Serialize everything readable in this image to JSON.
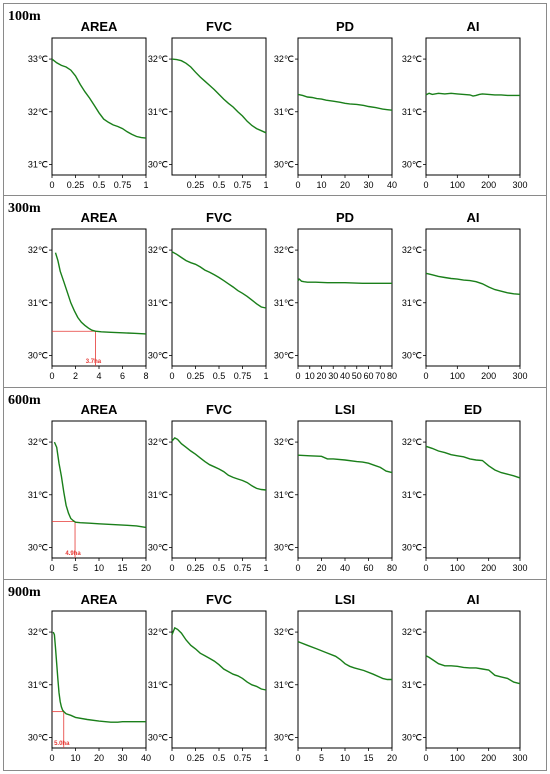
{
  "figure": {
    "line_color": "#1a7f1a",
    "threshold_color": "#e53935"
  },
  "chart_data": [
    {
      "row": "100m",
      "title": "AREA",
      "type": "line",
      "xlim": [
        0,
        1
      ],
      "xticks": [
        0,
        0.25,
        0.5,
        0.75,
        1
      ],
      "xticklabels": [
        "0",
        "0.25",
        "0.5",
        "0.75",
        "1"
      ],
      "ylim": [
        30.8,
        33.4
      ],
      "yticks": [
        31,
        32,
        33
      ],
      "yticklabels": [
        "31℃",
        "32℃",
        "33℃"
      ],
      "x": [
        0,
        0.05,
        0.1,
        0.15,
        0.2,
        0.25,
        0.3,
        0.35,
        0.4,
        0.45,
        0.5,
        0.55,
        0.6,
        0.65,
        0.7,
        0.75,
        0.8,
        0.85,
        0.9,
        0.95,
        1
      ],
      "y": [
        33.0,
        32.93,
        32.88,
        32.85,
        32.79,
        32.68,
        32.52,
        32.38,
        32.26,
        32.12,
        31.98,
        31.86,
        31.8,
        31.75,
        31.72,
        31.68,
        31.62,
        31.57,
        31.53,
        31.51,
        31.5
      ]
    },
    {
      "row": "100m",
      "title": "FVC",
      "type": "line",
      "xlim": [
        0,
        1
      ],
      "xticks": [
        0.25,
        0.5,
        0.75,
        1
      ],
      "xticklabels": [
        "0.25",
        "0.5",
        "0.75",
        "1"
      ],
      "ylim": [
        29.8,
        32.4
      ],
      "yticks": [
        30,
        31,
        32
      ],
      "yticklabels": [
        "30℃",
        "31℃",
        "32℃"
      ],
      "x": [
        0,
        0.05,
        0.1,
        0.15,
        0.2,
        0.25,
        0.3,
        0.35,
        0.4,
        0.45,
        0.5,
        0.55,
        0.6,
        0.65,
        0.7,
        0.75,
        0.8,
        0.85,
        0.9,
        0.95,
        1
      ],
      "y": [
        32.0,
        31.99,
        31.97,
        31.92,
        31.85,
        31.75,
        31.66,
        31.58,
        31.5,
        31.42,
        31.33,
        31.24,
        31.16,
        31.09,
        31.0,
        30.92,
        30.82,
        30.74,
        30.68,
        30.64,
        30.6
      ]
    },
    {
      "row": "100m",
      "title": "PD",
      "type": "line",
      "xlim": [
        0,
        40
      ],
      "xticks": [
        0,
        10,
        20,
        30,
        40
      ],
      "xticklabels": [
        "0",
        "10",
        "20",
        "30",
        "40"
      ],
      "ylim": [
        29.8,
        32.4
      ],
      "yticks": [
        30,
        31,
        32
      ],
      "yticklabels": [
        "30℃",
        "31℃",
        "32℃"
      ],
      "x": [
        0,
        2,
        4,
        6,
        8,
        10,
        12,
        15,
        18,
        20,
        22,
        25,
        28,
        30,
        33,
        36,
        38,
        40
      ],
      "y": [
        31.33,
        31.31,
        31.28,
        31.27,
        31.25,
        31.24,
        31.22,
        31.2,
        31.18,
        31.16,
        31.15,
        31.14,
        31.12,
        31.1,
        31.08,
        31.05,
        31.04,
        31.03
      ]
    },
    {
      "row": "100m",
      "title": "AI",
      "type": "line",
      "xlim": [
        0,
        300
      ],
      "xticks": [
        0,
        100,
        200,
        300
      ],
      "xticklabels": [
        "0",
        "100",
        "200",
        "300"
      ],
      "ylim": [
        29.8,
        32.4
      ],
      "yticks": [
        30,
        31,
        32
      ],
      "yticklabels": [
        "30℃",
        "31℃",
        "32℃"
      ],
      "x": [
        0,
        10,
        20,
        40,
        60,
        80,
        100,
        120,
        140,
        150,
        160,
        170,
        180,
        200,
        220,
        240,
        260,
        280,
        300
      ],
      "y": [
        31.32,
        31.35,
        31.33,
        31.35,
        31.34,
        31.35,
        31.34,
        31.33,
        31.32,
        31.3,
        31.31,
        31.33,
        31.34,
        31.33,
        31.32,
        31.32,
        31.31,
        31.31,
        31.31
      ]
    },
    {
      "row": "300m",
      "title": "AREA",
      "type": "line",
      "xlim": [
        0,
        8
      ],
      "xticks": [
        0,
        2,
        4,
        6,
        8
      ],
      "xticklabels": [
        "0",
        "2",
        "4",
        "6",
        "8"
      ],
      "ylim": [
        29.8,
        32.4
      ],
      "yticks": [
        30,
        31,
        32
      ],
      "yticklabels": [
        "30℃",
        "31℃",
        "32℃"
      ],
      "x": [
        0.3,
        0.5,
        0.7,
        1.0,
        1.3,
        1.6,
        1.9,
        2.2,
        2.5,
        2.8,
        3.1,
        3.4,
        3.7,
        4.2,
        5,
        6,
        7,
        8
      ],
      "y": [
        31.95,
        31.8,
        31.6,
        31.4,
        31.2,
        31.0,
        30.85,
        30.72,
        30.63,
        30.57,
        30.52,
        30.48,
        30.46,
        30.45,
        30.44,
        30.43,
        30.42,
        30.41
      ],
      "threshold": {
        "x": 3.7,
        "y": 30.46,
        "label": "3.7ha"
      }
    },
    {
      "row": "300m",
      "title": "FVC",
      "type": "line",
      "xlim": [
        0,
        1
      ],
      "xticks": [
        0,
        0.25,
        0.5,
        0.75,
        1
      ],
      "xticklabels": [
        "0",
        "0.25",
        "0.5",
        "0.75",
        "1"
      ],
      "ylim": [
        29.8,
        32.4
      ],
      "yticks": [
        30,
        31,
        32
      ],
      "yticklabels": [
        "30℃",
        "31℃",
        "32℃"
      ],
      "x": [
        0,
        0.05,
        0.1,
        0.15,
        0.2,
        0.25,
        0.3,
        0.35,
        0.4,
        0.45,
        0.5,
        0.55,
        0.6,
        0.65,
        0.7,
        0.75,
        0.8,
        0.85,
        0.9,
        0.95,
        1
      ],
      "y": [
        31.97,
        31.92,
        31.86,
        31.8,
        31.76,
        31.73,
        31.68,
        31.62,
        31.58,
        31.53,
        31.48,
        31.42,
        31.36,
        31.3,
        31.23,
        31.18,
        31.12,
        31.05,
        30.98,
        30.92,
        30.9
      ]
    },
    {
      "row": "300m",
      "title": "PD",
      "type": "line",
      "xlim": [
        0,
        80
      ],
      "xticks": [
        0,
        10,
        20,
        30,
        40,
        50,
        60,
        70,
        80
      ],
      "xticklabels": [
        "0",
        "10",
        "20",
        "30",
        "40",
        "50",
        "60",
        "70",
        "80"
      ],
      "ylim": [
        29.8,
        32.4
      ],
      "yticks": [
        30,
        31,
        32
      ],
      "yticklabels": [
        "30℃",
        "31℃",
        "32℃"
      ],
      "x": [
        0,
        1,
        2,
        3,
        5,
        8,
        15,
        25,
        40,
        55,
        70,
        80
      ],
      "y": [
        31.42,
        31.45,
        31.43,
        31.41,
        31.4,
        31.39,
        31.39,
        31.38,
        31.38,
        31.37,
        31.37,
        31.37
      ]
    },
    {
      "row": "300m",
      "title": "AI",
      "type": "line",
      "xlim": [
        0,
        300
      ],
      "xticks": [
        0,
        100,
        200,
        300
      ],
      "xticklabels": [
        "0",
        "100",
        "200",
        "300"
      ],
      "ylim": [
        29.8,
        32.4
      ],
      "yticks": [
        30,
        31,
        32
      ],
      "yticklabels": [
        "30℃",
        "31℃",
        "32℃"
      ],
      "x": [
        0,
        20,
        40,
        60,
        80,
        100,
        120,
        140,
        160,
        180,
        200,
        220,
        240,
        260,
        280,
        300
      ],
      "y": [
        31.56,
        31.53,
        31.5,
        31.48,
        31.46,
        31.45,
        31.43,
        31.42,
        31.4,
        31.36,
        31.3,
        31.25,
        31.22,
        31.19,
        31.17,
        31.16
      ]
    },
    {
      "row": "600m",
      "title": "AREA",
      "type": "line",
      "xlim": [
        0,
        20
      ],
      "xticks": [
        0,
        5,
        10,
        15,
        20
      ],
      "xticklabels": [
        "0",
        "5",
        "10",
        "15",
        "20"
      ],
      "ylim": [
        29.8,
        32.4
      ],
      "yticks": [
        30,
        31,
        32
      ],
      "yticklabels": [
        "30℃",
        "31℃",
        "32℃"
      ],
      "x": [
        0.5,
        1,
        1.5,
        2,
        2.5,
        3,
        3.5,
        4,
        4.5,
        5,
        6,
        8,
        10,
        12,
        14,
        16,
        18,
        20
      ],
      "y": [
        32.0,
        31.9,
        31.6,
        31.35,
        31.05,
        30.8,
        30.65,
        30.55,
        30.51,
        30.48,
        30.47,
        30.46,
        30.45,
        30.44,
        30.43,
        30.42,
        30.41,
        30.38
      ],
      "threshold": {
        "x": 4.9,
        "y": 30.49,
        "label": "4.9ha"
      }
    },
    {
      "row": "600m",
      "title": "FVC",
      "type": "line",
      "xlim": [
        0,
        1
      ],
      "xticks": [
        0,
        0.25,
        0.5,
        0.75,
        1
      ],
      "xticklabels": [
        "0",
        "0.25",
        "0.5",
        "0.75",
        "1"
      ],
      "ylim": [
        29.8,
        32.4
      ],
      "yticks": [
        30,
        31,
        32
      ],
      "yticklabels": [
        "30℃",
        "31℃",
        "32℃"
      ],
      "x": [
        0,
        0.03,
        0.06,
        0.1,
        0.15,
        0.2,
        0.25,
        0.3,
        0.35,
        0.4,
        0.45,
        0.5,
        0.55,
        0.6,
        0.65,
        0.7,
        0.75,
        0.8,
        0.85,
        0.9,
        0.95,
        1
      ],
      "y": [
        32.02,
        32.08,
        32.05,
        31.97,
        31.9,
        31.83,
        31.77,
        31.7,
        31.63,
        31.57,
        31.53,
        31.49,
        31.44,
        31.37,
        31.33,
        31.3,
        31.27,
        31.23,
        31.17,
        31.12,
        31.1,
        31.09
      ]
    },
    {
      "row": "600m",
      "title": "LSI",
      "type": "line",
      "xlim": [
        0,
        80
      ],
      "xticks": [
        0,
        20,
        40,
        60,
        80
      ],
      "xticklabels": [
        "0",
        "20",
        "40",
        "60",
        "80"
      ],
      "ylim": [
        29.8,
        32.4
      ],
      "yticks": [
        30,
        31,
        32
      ],
      "yticklabels": [
        "30℃",
        "31℃",
        "32℃"
      ],
      "x": [
        0,
        10,
        20,
        25,
        30,
        40,
        50,
        55,
        60,
        65,
        70,
        75,
        80
      ],
      "y": [
        31.75,
        31.74,
        31.73,
        31.68,
        31.68,
        31.66,
        31.63,
        31.62,
        31.6,
        31.56,
        31.52,
        31.45,
        31.42
      ]
    },
    {
      "row": "600m",
      "title": "ED",
      "type": "line",
      "xlim": [
        0,
        300
      ],
      "xticks": [
        0,
        100,
        200,
        300
      ],
      "xticklabels": [
        "0",
        "100",
        "200",
        "300"
      ],
      "ylim": [
        29.8,
        32.4
      ],
      "yticks": [
        30,
        31,
        32
      ],
      "yticklabels": [
        "30℃",
        "31℃",
        "32℃"
      ],
      "x": [
        0,
        20,
        40,
        60,
        80,
        100,
        120,
        140,
        160,
        180,
        200,
        220,
        240,
        260,
        280,
        300
      ],
      "y": [
        31.92,
        31.88,
        31.83,
        31.8,
        31.76,
        31.74,
        31.72,
        31.68,
        31.66,
        31.65,
        31.55,
        31.47,
        31.42,
        31.39,
        31.36,
        31.32
      ]
    },
    {
      "row": "900m",
      "title": "AREA",
      "type": "line",
      "xlim": [
        0,
        40
      ],
      "xticks": [
        0,
        10,
        20,
        30,
        40
      ],
      "xticklabels": [
        "0",
        "10",
        "20",
        "30",
        "40"
      ],
      "ylim": [
        29.8,
        32.4
      ],
      "yticks": [
        30,
        31,
        32
      ],
      "yticklabels": [
        "30℃",
        "31℃",
        "32℃"
      ],
      "x": [
        0.5,
        1,
        1.5,
        2,
        2.5,
        3,
        3.5,
        4,
        4.5,
        5,
        6,
        8,
        10,
        15,
        20,
        25,
        28,
        30,
        35,
        40
      ],
      "y": [
        32.0,
        31.95,
        31.7,
        31.4,
        31.1,
        30.85,
        30.68,
        30.58,
        30.52,
        30.49,
        30.45,
        30.42,
        30.38,
        30.34,
        30.31,
        30.29,
        30.29,
        30.3,
        30.3,
        30.3
      ],
      "threshold": {
        "x": 5.0,
        "y": 30.49,
        "label": "5.0ha"
      }
    },
    {
      "row": "900m",
      "title": "FVC",
      "type": "line",
      "xlim": [
        0,
        1
      ],
      "xticks": [
        0,
        0.25,
        0.5,
        0.75,
        1
      ],
      "xticklabels": [
        "0",
        "0.25",
        "0.5",
        "0.75",
        "1"
      ],
      "ylim": [
        29.8,
        32.4
      ],
      "yticks": [
        30,
        31,
        32
      ],
      "yticklabels": [
        "30℃",
        "31℃",
        "32℃"
      ],
      "x": [
        0,
        0.03,
        0.06,
        0.1,
        0.15,
        0.2,
        0.25,
        0.3,
        0.35,
        0.4,
        0.45,
        0.5,
        0.55,
        0.6,
        0.65,
        0.7,
        0.75,
        0.8,
        0.85,
        0.9,
        0.95,
        1
      ],
      "y": [
        31.95,
        32.08,
        32.05,
        31.98,
        31.85,
        31.75,
        31.68,
        31.6,
        31.55,
        31.5,
        31.45,
        31.38,
        31.3,
        31.25,
        31.2,
        31.17,
        31.12,
        31.05,
        31.0,
        30.97,
        30.92,
        30.9
      ]
    },
    {
      "row": "900m",
      "title": "LSI",
      "type": "line",
      "xlim": [
        0,
        20
      ],
      "xticks": [
        0,
        5,
        10,
        15,
        20
      ],
      "xticklabels": [
        "0",
        "5",
        "10",
        "15",
        "20"
      ],
      "ylim": [
        29.8,
        32.4
      ],
      "yticks": [
        30,
        31,
        32
      ],
      "yticklabels": [
        "30℃",
        "31℃",
        "32℃"
      ],
      "x": [
        0,
        2,
        4,
        6,
        8,
        9,
        10,
        11,
        12,
        14,
        16,
        18,
        19,
        20
      ],
      "y": [
        31.82,
        31.75,
        31.68,
        31.61,
        31.54,
        31.48,
        31.4,
        31.35,
        31.32,
        31.27,
        31.2,
        31.12,
        31.1,
        31.1
      ]
    },
    {
      "row": "900m",
      "title": "AI",
      "type": "line",
      "xlim": [
        0,
        300
      ],
      "xticks": [
        0,
        100,
        200,
        300
      ],
      "xticklabels": [
        "0",
        "100",
        "200",
        "300"
      ],
      "ylim": [
        29.8,
        32.4
      ],
      "yticks": [
        30,
        31,
        32
      ],
      "yticklabels": [
        "30℃",
        "31℃",
        "32℃"
      ],
      "x": [
        0,
        10,
        20,
        40,
        60,
        80,
        100,
        120,
        140,
        160,
        180,
        200,
        220,
        240,
        260,
        280,
        300
      ],
      "y": [
        31.55,
        31.52,
        31.48,
        31.4,
        31.36,
        31.36,
        31.35,
        31.33,
        31.32,
        31.32,
        31.3,
        31.28,
        31.18,
        31.15,
        31.12,
        31.05,
        31.02
      ]
    }
  ],
  "row_labels": [
    "100m",
    "300m",
    "600m",
    "900m"
  ]
}
